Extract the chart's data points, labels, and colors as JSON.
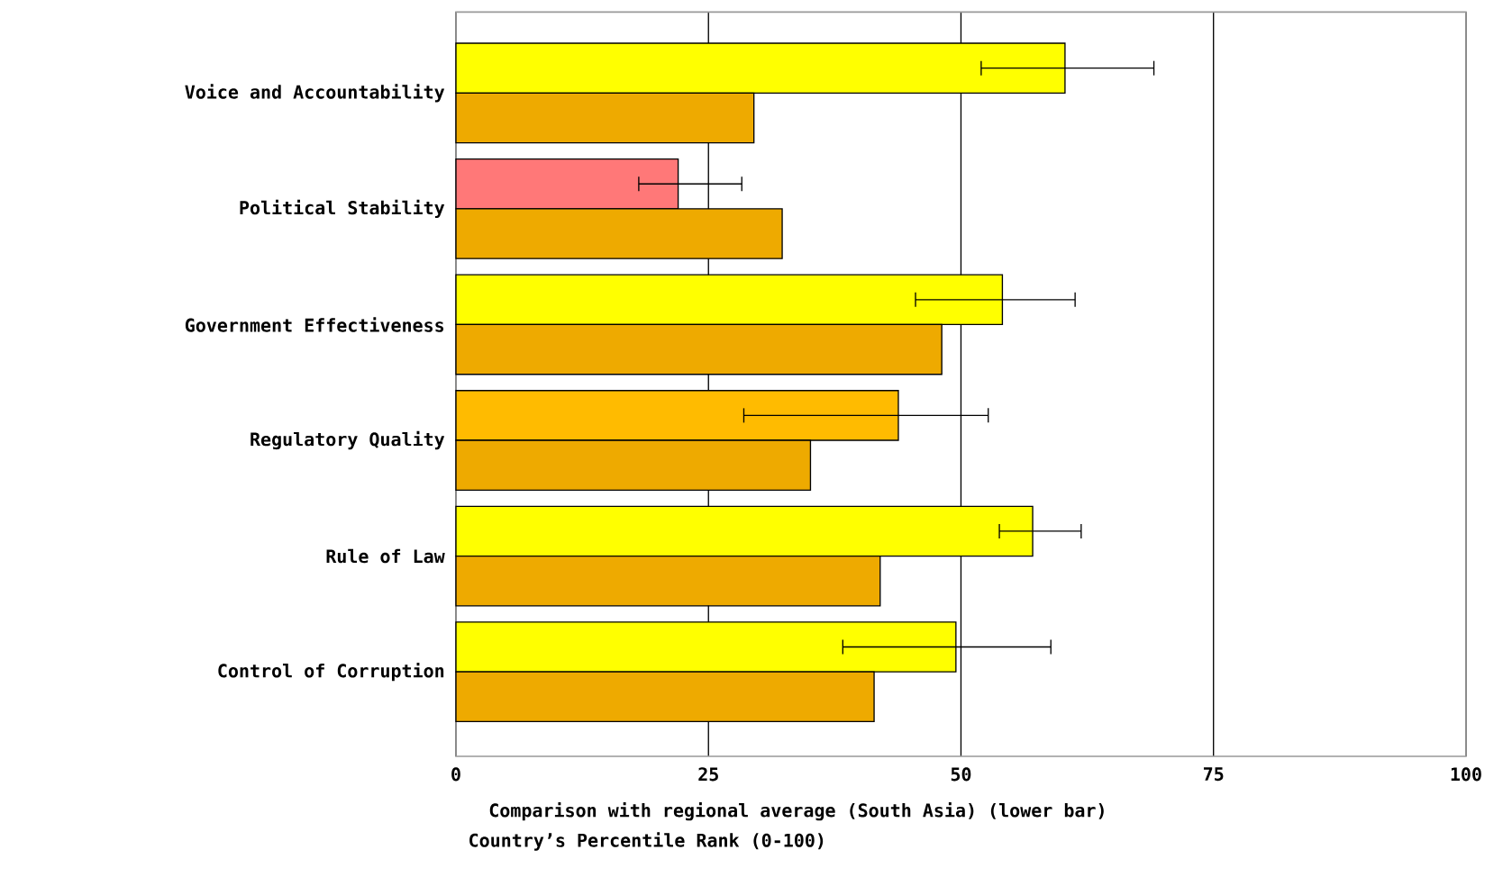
{
  "chart_data": {
    "type": "bar",
    "orientation": "horizontal",
    "categories": [
      "Voice and Accountability",
      "Political Stability",
      "Government Effectiveness",
      "Regulatory Quality",
      "Rule of Law",
      "Control of Corruption"
    ],
    "series": [
      {
        "colors": [
          "#ffff00",
          "#ff7878",
          "#ffff00",
          "#ffbb00",
          "#ffff00",
          "#ffff00"
        ],
        "values": [
          60.3,
          22.0,
          54.1,
          43.8,
          57.1,
          49.5
        ],
        "errors": [
          [
            52.0,
            69.1
          ],
          [
            18.1,
            28.3
          ],
          [
            45.5,
            61.3
          ],
          [
            28.5,
            52.7
          ],
          [
            53.8,
            61.9
          ],
          [
            38.3,
            58.9
          ]
        ]
      },
      {
        "color": "#eeaa00",
        "values": [
          29.5,
          32.3,
          48.1,
          35.1,
          42.0,
          41.4
        ]
      }
    ],
    "xlim": [
      0,
      100
    ],
    "xticks": [
      0,
      25,
      50,
      75,
      100
    ],
    "grid": "x",
    "xlabel": "Country’s Percentile Rank (0-100)",
    "annotations": [
      "Comparison with regional average (South Asia) (lower bar)"
    ]
  }
}
